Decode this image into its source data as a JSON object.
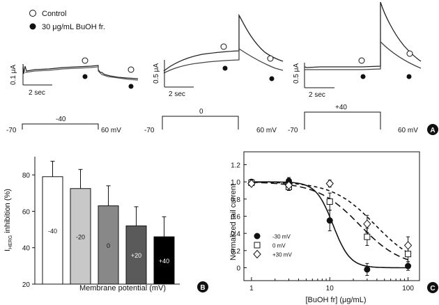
{
  "panel_a": {
    "legend": {
      "control": "Control",
      "treated": "30 μg/mL BuOH fr."
    },
    "traces": [
      {
        "scale_label": "0.1 μA",
        "time_label": "2 sec"
      },
      {
        "scale_label": "0.5 μA",
        "time_label": "2 sec"
      },
      {
        "scale_label": "0.5 μA",
        "time_label": "2 sec"
      }
    ],
    "protocols": [
      {
        "holding": "-70",
        "step": "-40",
        "tail": "60 mV"
      },
      {
        "holding": "-70",
        "step": "0",
        "tail": "60 mV"
      },
      {
        "holding": "-70",
        "step": "+40",
        "tail": "60 mV"
      }
    ],
    "panel_letter": "A"
  },
  "panel_b": {
    "panel_letter": "B"
  },
  "panel_c": {
    "panel_letter": "C"
  },
  "chart_data": [
    {
      "type": "bar",
      "categories": [
        "-40",
        "-20",
        "0",
        "+20",
        "+40"
      ],
      "values": [
        79,
        72.5,
        63,
        52,
        46
      ],
      "errors": [
        8.5,
        10.5,
        11,
        10.5,
        11
      ],
      "bar_colors": [
        "#ffffff",
        "#c8c8c8",
        "#888888",
        "#5a5a5a",
        "#000000"
      ],
      "bar_label_colors": [
        "#111111",
        "#111111",
        "#111111",
        "#ffffff",
        "#ffffff"
      ],
      "xlabel": "Membrane potential (mV)",
      "ylabel": {
        "main": "I",
        "sub": "HERG",
        "rest": " inhibition (%)"
      },
      "ylim": [
        20,
        90
      ],
      "yticks": [
        20,
        40,
        60,
        80
      ],
      "grid": false
    },
    {
      "type": "scatter",
      "xscale": "log",
      "xlabel": "[BuOH fr] (μg/mL)",
      "ylabel": "Normalized tail current",
      "xlim": [
        0.8,
        140
      ],
      "ylim": [
        -0.15,
        1.35
      ],
      "xticks": [
        1,
        10,
        100
      ],
      "yticks": [
        0.0,
        0.2,
        0.4,
        0.6,
        0.8,
        1.0,
        1.2
      ],
      "ytick_labels": [
        "0",
        "0.2",
        "0.4",
        "0.6",
        "0.8",
        "1.0",
        "1.2"
      ],
      "legend_position": "bottom-left",
      "series": [
        {
          "name": "-30 mV",
          "marker": "filled-circle",
          "x": [
            1,
            3,
            10,
            30,
            100
          ],
          "y": [
            1.0,
            1.01,
            0.55,
            -0.02,
            0.02
          ],
          "errors": [
            0.03,
            0.04,
            0.12,
            0.07,
            0.05
          ],
          "fit": {
            "ic50": 11,
            "hill": 4
          }
        },
        {
          "name": "0 mV",
          "marker": "open-square",
          "x": [
            1,
            3,
            10,
            30,
            100
          ],
          "y": [
            0.99,
            0.94,
            0.77,
            0.36,
            0.16
          ],
          "errors": [
            0.02,
            0.04,
            0.1,
            0.1,
            0.09
          ],
          "fit": {
            "ic50": 24,
            "hill": 1.6
          }
        },
        {
          "name": "+30 mV",
          "marker": "open-diamond",
          "x": [
            1,
            3,
            10,
            30,
            100
          ],
          "y": [
            0.98,
            0.96,
            0.98,
            0.51,
            0.26
          ],
          "errors": [
            0.02,
            0.03,
            0.04,
            0.1,
            0.1
          ],
          "fit": {
            "ic50": 38,
            "hill": 1.6
          }
        }
      ]
    }
  ]
}
